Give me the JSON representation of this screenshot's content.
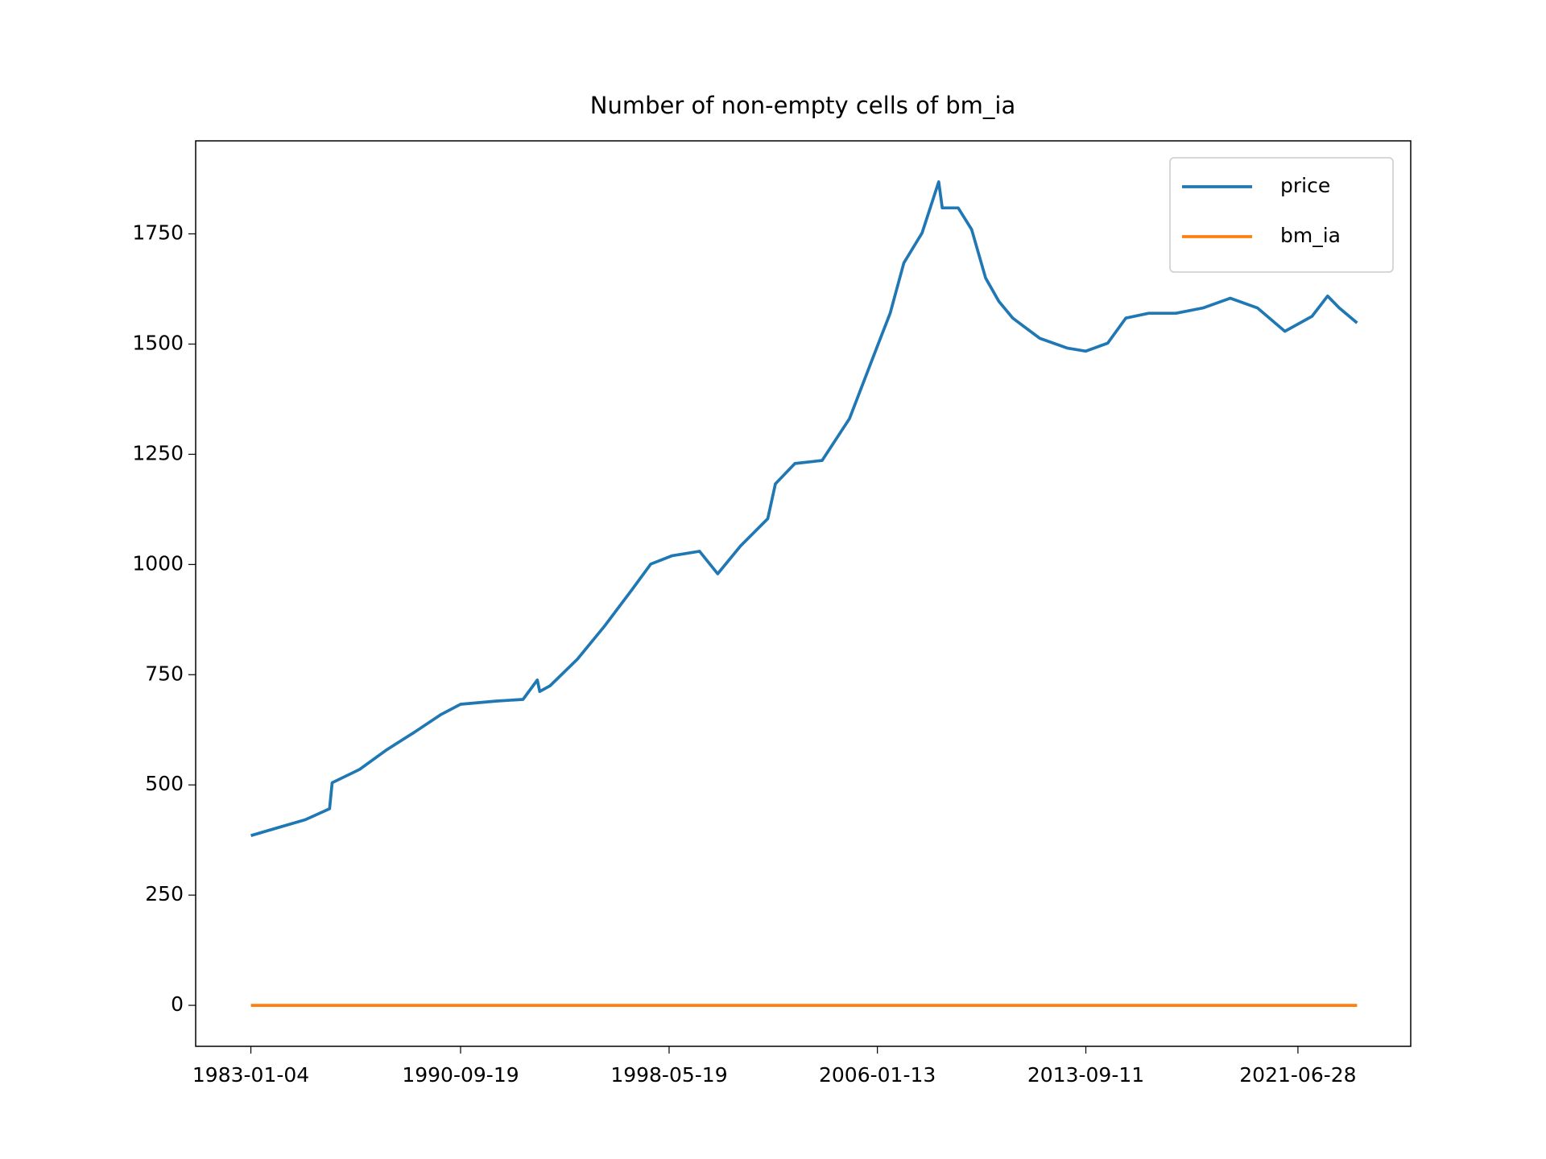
{
  "chart_data": {
    "type": "line",
    "title": "Number of non-empty cells of bm_ia",
    "x": [
      "1983-01-04",
      "1984-01-03",
      "1985-01-02",
      "1985-11-25",
      "1985-12-30",
      "1987-01-02",
      "1988-01-04",
      "1989-01-03",
      "1990-01-02",
      "1990-09-19",
      "1992-01-02",
      "1993-01-04",
      "1993-07-15",
      "1993-08-16",
      "1994-01-03",
      "1995-01-03",
      "1996-01-02",
      "1997-01-02",
      "1997-09-15",
      "1998-07-01",
      "1999-07-01",
      "2000-03-01",
      "2001-01-02",
      "2002-01-02",
      "2002-04-15",
      "2003-01-02",
      "2004-01-02",
      "2005-01-03",
      "2006-01-03",
      "2006-07-03",
      "2007-01-03",
      "2007-09-04",
      "2008-04-15",
      "2008-06-02",
      "2009-01-02",
      "2009-07-01",
      "2010-01-04",
      "2010-07-01",
      "2011-01-03",
      "2012-01-03",
      "2013-01-02",
      "2013-09-11",
      "2014-07-01",
      "2015-03-02",
      "2016-01-04",
      "2017-01-03",
      "2018-01-02",
      "2019-01-02",
      "2020-01-02",
      "2021-01-04",
      "2022-01-03",
      "2022-08-01",
      "2023-01-03",
      "2023-08-31"
    ],
    "series": [
      {
        "name": "price",
        "color": "#1f77b4",
        "values": [
          385,
          403,
          421,
          446,
          505,
          535,
          580,
          619,
          660,
          683,
          690,
          694,
          738,
          712,
          725,
          785,
          860,
          942,
          1001,
          1020,
          1030,
          979,
          1042,
          1104,
          1183,
          1229,
          1236,
          1331,
          1491,
          1570,
          1684,
          1752,
          1868,
          1809,
          1809,
          1760,
          1650,
          1597,
          1559,
          1513,
          1491,
          1484,
          1502,
          1559,
          1570,
          1570,
          1582,
          1604,
          1582,
          1529,
          1563,
          1609,
          1582,
          1548
        ]
      },
      {
        "name": "bm_ia",
        "color": "#ff7f0e",
        "values": [
          0,
          0,
          0,
          0,
          0,
          0,
          0,
          0,
          0,
          0,
          0,
          0,
          0,
          0,
          0,
          0,
          0,
          0,
          0,
          0,
          0,
          0,
          0,
          0,
          0,
          0,
          0,
          0,
          0,
          0,
          0,
          0,
          0,
          0,
          0,
          0,
          0,
          0,
          0,
          0,
          0,
          0,
          0,
          0,
          0,
          0,
          0,
          0,
          0,
          0,
          0,
          0,
          0,
          0
        ]
      }
    ],
    "xlim": [
      "1980-12-24",
      "2025-08-20"
    ],
    "xticks": [
      "1983-01-04",
      "1990-09-19",
      "1998-05-19",
      "2006-01-13",
      "2013-09-11",
      "2021-06-28"
    ],
    "ylim": [
      -93,
      1961
    ],
    "yticks": [
      0,
      250,
      500,
      750,
      1000,
      1250,
      1500,
      1750
    ],
    "legend": "upper right"
  }
}
